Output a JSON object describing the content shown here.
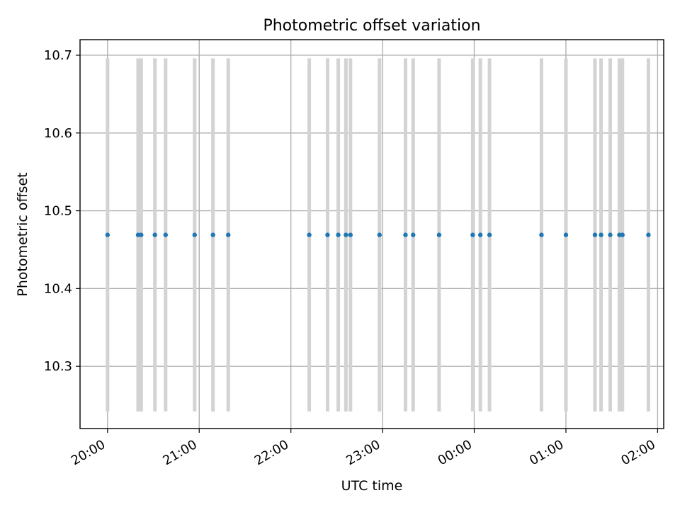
{
  "chart_data": {
    "type": "scatter",
    "title": "Photometric offset variation",
    "xlabel": "UTC time",
    "ylabel": "Photometric offset",
    "grid": true,
    "x_tick_labels": [
      "20:00",
      "21:00",
      "22:00",
      "23:00",
      "00:00",
      "01:00",
      "02:00"
    ],
    "x_tick_hours": [
      20,
      21,
      22,
      23,
      24,
      25,
      26
    ],
    "y_tick_labels": [
      "10.3",
      "10.4",
      "10.5",
      "10.6",
      "10.7"
    ],
    "y_ticks": [
      10.3,
      10.4,
      10.5,
      10.6,
      10.7
    ],
    "xlim": [
      "19:42",
      "02:04"
    ],
    "ylim": [
      10.22,
      10.72
    ],
    "series": [
      {
        "color": "#1f77b4",
        "errorbar_color": "#d3d3d3",
        "x": [
          "20:00",
          "20:20",
          "20:22",
          "20:31",
          "20:38",
          "20:57",
          "21:09",
          "21:19",
          "22:12",
          "22:24",
          "22:31",
          "22:36",
          "22:39",
          "22:58",
          "23:15",
          "23:20",
          "23:37",
          "23:59",
          "00:04",
          "00:10",
          "00:44",
          "01:00",
          "01:19",
          "01:23",
          "01:29",
          "01:35",
          "01:37",
          "01:54"
        ],
        "y": [
          10.469,
          10.469,
          10.469,
          10.469,
          10.469,
          10.469,
          10.469,
          10.469,
          10.469,
          10.469,
          10.469,
          10.469,
          10.469,
          10.469,
          10.469,
          10.469,
          10.469,
          10.469,
          10.469,
          10.469,
          10.469,
          10.469,
          10.469,
          10.469,
          10.469,
          10.469,
          10.469,
          10.469
        ],
        "y_err": 0.227
      }
    ]
  }
}
